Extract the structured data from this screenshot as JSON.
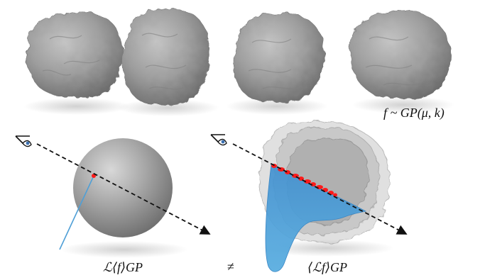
{
  "labels": {
    "gp_formula": "f ~ GP(μ, k)",
    "left_formula": "ℒ⟨f⟩GP",
    "not_equal": "≠",
    "right_formula": "⟨ℒf⟩GP"
  },
  "colors": {
    "surface_gray": "#9a9a9a",
    "intersection_red": "#ff1a1a",
    "distribution_blue": "#4f9fd6",
    "ray": "#111111"
  },
  "icons": [
    "eye-icon",
    "eye-icon"
  ]
}
